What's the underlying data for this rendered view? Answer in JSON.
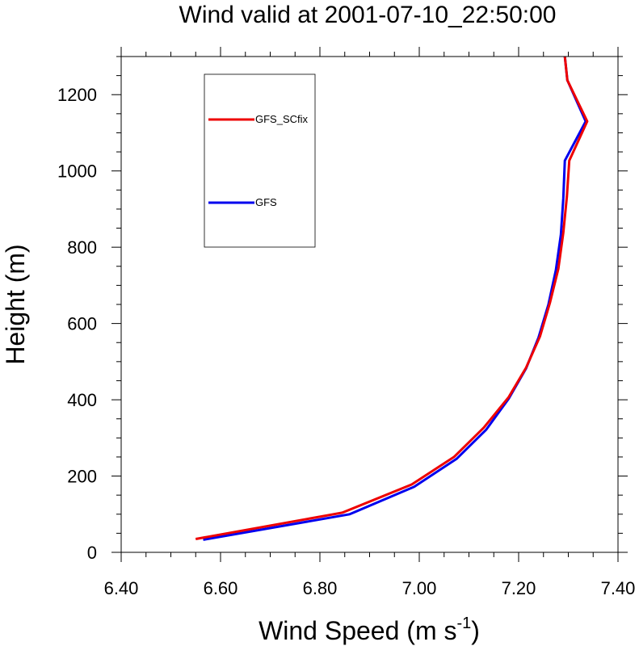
{
  "chart_data": {
    "type": "line",
    "title": "Wind valid at 2001-07-10_22:50:00",
    "xlabel": {
      "text": "Wind Speed (m s",
      "sup": "-1",
      "close": ")"
    },
    "ylabel": "Height (m)",
    "xlim": [
      6.4,
      7.4
    ],
    "ylim": [
      0,
      1300
    ],
    "x_major_ticks": [
      6.4,
      6.6,
      6.8,
      7.0,
      7.2,
      7.4
    ],
    "x_tick_labels": [
      "6.40",
      "6.60",
      "6.80",
      "7.00",
      "7.20",
      "7.40"
    ],
    "y_major_ticks": [
      0,
      200,
      400,
      600,
      800,
      1000,
      1200
    ],
    "y_tick_labels": [
      "0",
      "200",
      "400",
      "600",
      "800",
      "1000",
      "1200"
    ],
    "grid": false,
    "legend_position": "top-left",
    "series": [
      {
        "name": "GFS",
        "color": "#0000ee",
        "points": [
          [
            6.565,
            33
          ],
          [
            6.86,
            100
          ],
          [
            6.99,
            172
          ],
          [
            7.075,
            245
          ],
          [
            7.135,
            322
          ],
          [
            7.18,
            403
          ],
          [
            7.215,
            482
          ],
          [
            7.24,
            563
          ],
          [
            7.26,
            650
          ],
          [
            7.275,
            740
          ],
          [
            7.285,
            833
          ],
          [
            7.29,
            928
          ],
          [
            7.293,
            1027
          ],
          [
            7.335,
            1130
          ],
          [
            7.298,
            1238
          ],
          [
            7.293,
            1300
          ]
        ]
      },
      {
        "name": "GFS_SCfix",
        "color": "#ee0000",
        "points": [
          [
            6.55,
            35
          ],
          [
            6.845,
            104
          ],
          [
            6.985,
            178
          ],
          [
            7.07,
            250
          ],
          [
            7.13,
            327
          ],
          [
            7.18,
            407
          ],
          [
            7.215,
            484
          ],
          [
            7.243,
            566
          ],
          [
            7.263,
            654
          ],
          [
            7.28,
            744
          ],
          [
            7.29,
            838
          ],
          [
            7.297,
            932
          ],
          [
            7.302,
            1027
          ],
          [
            7.338,
            1130
          ],
          [
            7.298,
            1238
          ],
          [
            7.293,
            1300
          ]
        ]
      }
    ]
  }
}
